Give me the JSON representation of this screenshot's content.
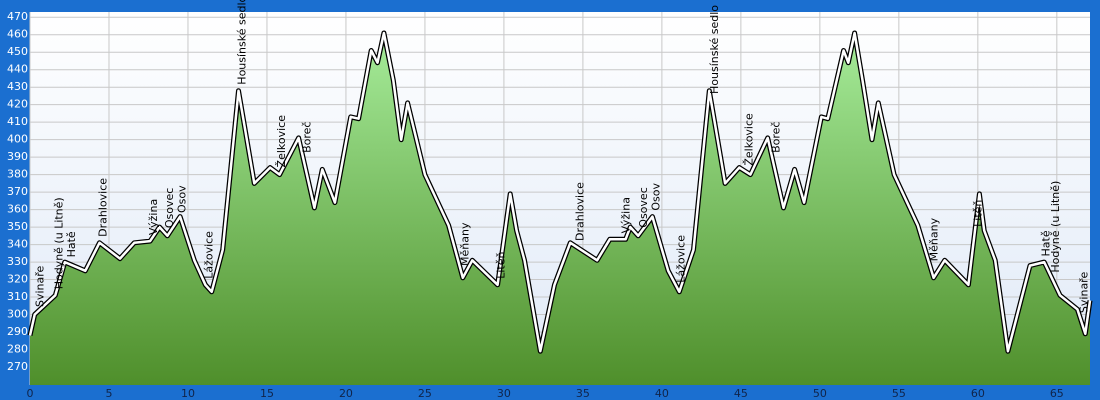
{
  "chart_data": {
    "type": "line",
    "x": [
      0,
      0.3,
      1.6,
      2.2,
      3.5,
      4.4,
      5.7,
      6.6,
      7.6,
      8.2,
      8.7,
      9.5,
      10.4,
      11.1,
      11.5,
      12.2,
      13.2,
      14.2,
      15.2,
      15.8,
      17.0,
      18.0,
      18.5,
      19.3,
      20.3,
      20.8,
      21.6,
      22.0,
      22.4,
      23.0,
      23.5,
      23.9,
      25.0,
      26.5,
      27.4,
      28.0,
      29.6,
      30.4,
      30.8,
      31.3,
      32.3,
      33.2,
      34.2,
      35.9,
      36.7,
      37.7,
      38.0,
      38.5,
      39.4,
      40.4,
      41.1,
      42.0,
      43.0,
      44.0,
      44.9,
      45.6,
      46.7,
      47.7,
      48.4,
      49.0,
      50.1,
      50.5,
      51.5,
      51.8,
      52.2,
      52.7,
      53.3,
      53.7,
      54.7,
      56.2,
      57.2,
      57.9,
      59.4,
      60.1,
      60.4,
      61.1,
      61.9,
      63.3,
      64.2,
      65.2,
      66.3,
      66.8,
      67.1
    ],
    "series": [
      {
        "color": "#ffffff",
        "fill_top": "#a6ec9a",
        "fill_bottom": "#4f8f2b",
        "values": [
          288,
          300,
          311,
          330,
          325,
          341,
          332,
          341,
          342,
          350,
          345,
          356,
          331,
          317,
          313,
          337,
          428,
          375,
          384,
          380,
          401,
          361,
          383,
          364,
          413,
          412,
          451,
          444,
          461,
          434,
          400,
          421,
          380,
          351,
          321,
          331,
          317,
          369,
          348,
          331,
          279,
          317,
          341,
          331,
          343,
          343,
          350,
          345,
          356,
          325,
          313,
          337,
          428,
          375,
          384,
          380,
          401,
          361,
          383,
          364,
          413,
          412,
          451,
          444,
          461,
          434,
          400,
          421,
          380,
          351,
          321,
          331,
          317,
          369,
          348,
          331,
          279,
          328,
          330,
          311,
          303,
          289,
          308
        ]
      }
    ],
    "annotations": [
      {
        "text": "Svinaře",
        "x": 0.4
      },
      {
        "text": "Hodyně (u Litně)",
        "x": 1.6
      },
      {
        "text": "Hatě",
        "x": 2.4
      },
      {
        "text": "Drahlovice",
        "x": 4.4
      },
      {
        "text": "Výžina",
        "x": 7.6
      },
      {
        "text": "Osovec",
        "x": 8.6
      },
      {
        "text": "Osov",
        "x": 9.4
      },
      {
        "text": "Lážovice",
        "x": 11.1
      },
      {
        "text": "Housínské sedlo",
        "x": 13.2
      },
      {
        "text": "Želkovice",
        "x": 15.7
      },
      {
        "text": "Boreč",
        "x": 17.3
      },
      {
        "text": "Měňany",
        "x": 27.3
      },
      {
        "text": "Litěň",
        "x": 29.6
      },
      {
        "text": "Drahlovice",
        "x": 34.6
      },
      {
        "text": "Výžina",
        "x": 37.5
      },
      {
        "text": "Osovec",
        "x": 38.6
      },
      {
        "text": "Osov",
        "x": 39.4
      },
      {
        "text": "Lážovice",
        "x": 41.0
      },
      {
        "text": "Housínské sedlo",
        "x": 43.1
      },
      {
        "text": "Želkovice",
        "x": 45.3
      },
      {
        "text": "Boreč",
        "x": 47.0
      },
      {
        "text": "Měňany",
        "x": 57.0
      },
      {
        "text": "Litěň",
        "x": 59.8
      },
      {
        "text": "Hatě",
        "x": 64.1
      },
      {
        "text": "Hodyně (u Litně)",
        "x": 64.7
      },
      {
        "text": "Svinaře",
        "x": 66.5
      }
    ],
    "xlim": [
      0,
      67.1
    ],
    "xticks": [
      0,
      5,
      10,
      15,
      20,
      25,
      30,
      35,
      40,
      45,
      50,
      55,
      60,
      65
    ],
    "ylim": [
      259.7,
      473
    ],
    "yticks": [
      270,
      280,
      290,
      300,
      310,
      320,
      330,
      340,
      350,
      360,
      370,
      380,
      390,
      400,
      410,
      420,
      430,
      440,
      450,
      460,
      470
    ],
    "grid": true
  }
}
